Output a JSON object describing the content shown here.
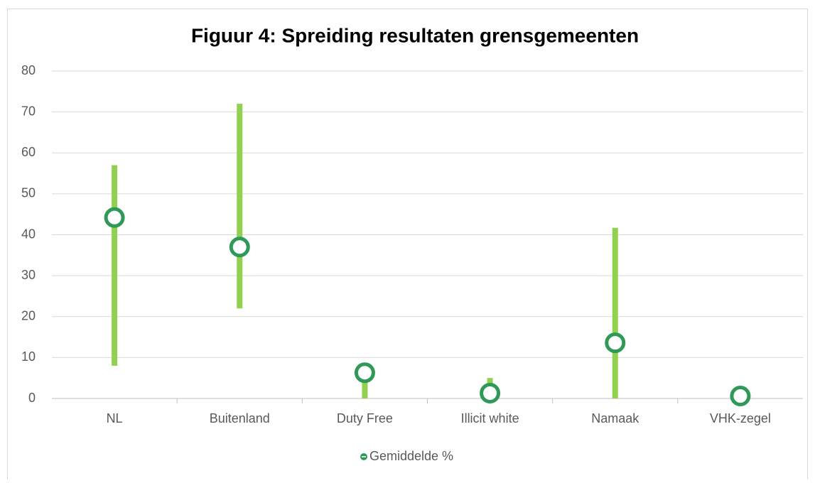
{
  "chart_data": {
    "type": "range",
    "title": "Figuur 4: Spreiding resultaten grensgemeenten",
    "categories": [
      "NL",
      "Buitenland",
      "Duty Free",
      "Illicit white",
      "Namaak",
      "VHK-zegel"
    ],
    "ranges": {
      "color": "#92d050",
      "low": [
        8,
        22,
        0,
        0,
        0,
        0
      ],
      "high": [
        57,
        72,
        7.5,
        5,
        41.7,
        2
      ]
    },
    "series": [
      {
        "name": "Gemiddelde %",
        "color": "#2f9957",
        "values": [
          44.2,
          37,
          6.3,
          1.3,
          13.6,
          0.6
        ]
      }
    ],
    "ylim": [
      0,
      80
    ],
    "yticks": [
      0,
      10,
      20,
      30,
      40,
      50,
      60,
      70,
      80
    ],
    "grid": true,
    "legend": "bottom"
  }
}
